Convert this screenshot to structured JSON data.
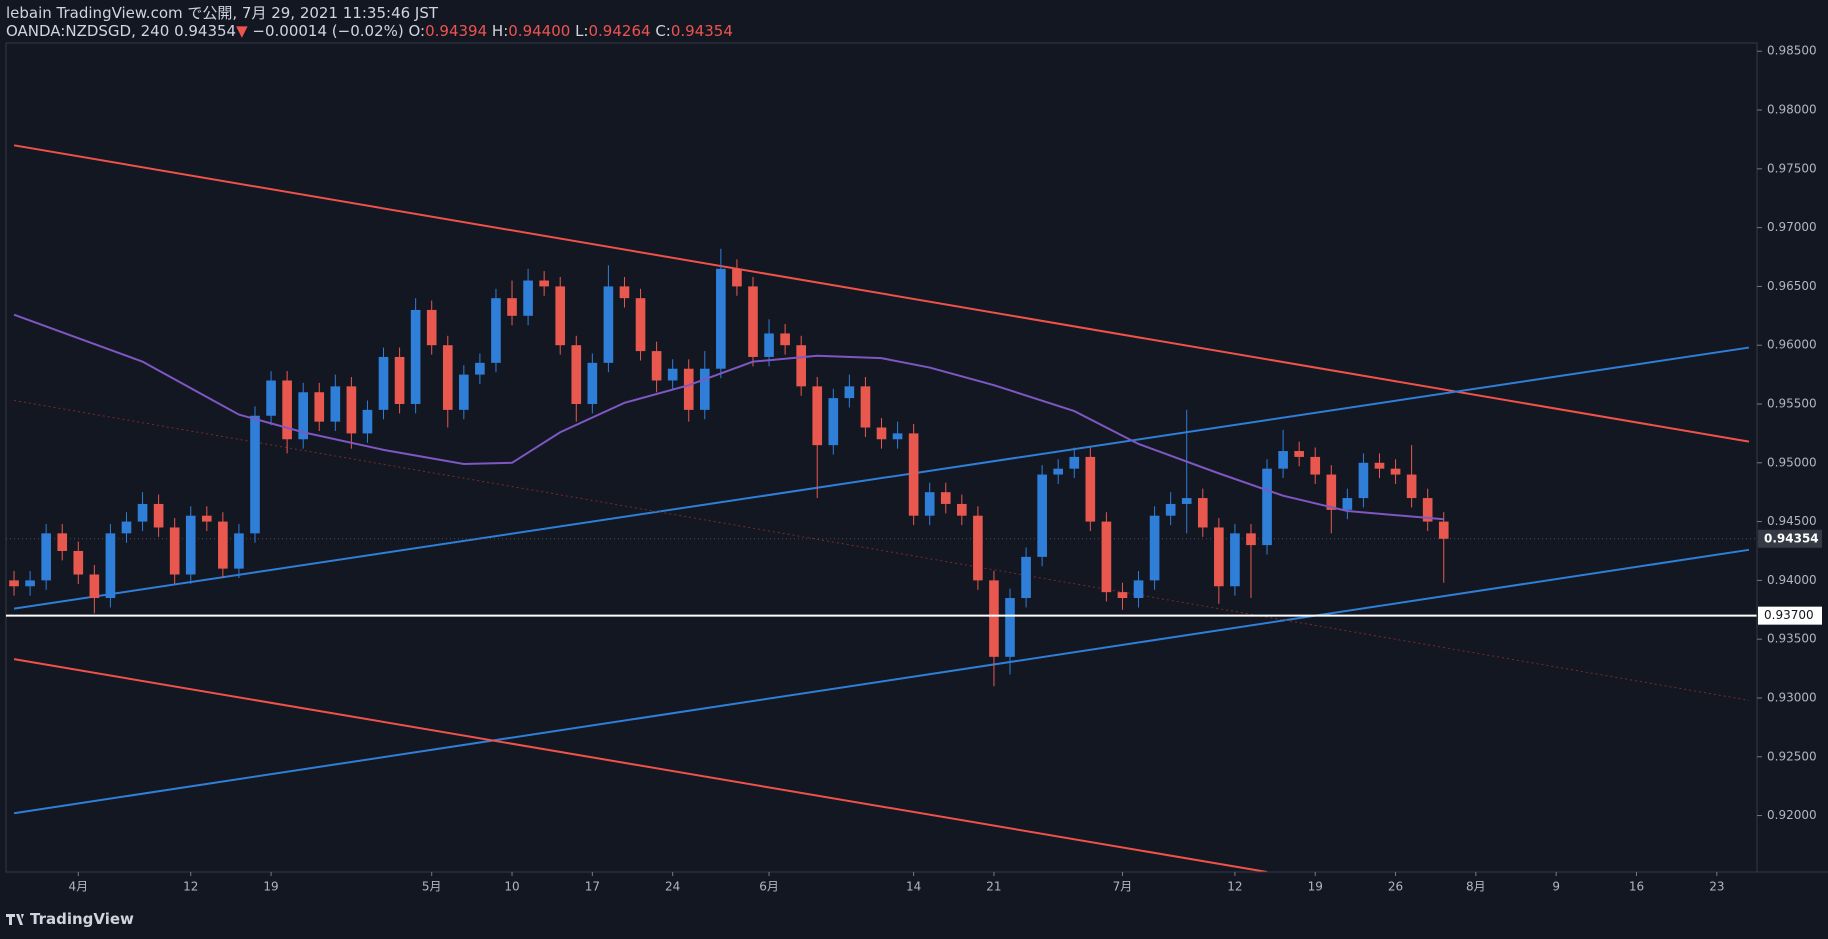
{
  "header": {
    "title": "lebain TradingView.com で公開, 7月 29, 2021 11:35:46 JST",
    "symbol": "OANDA:NZDSGD, 240",
    "last": "0.94354",
    "arrow": "▼",
    "change": "−0.00014 (−0.02%)",
    "ohlc": [
      {
        "label": "O:",
        "value": "0.94394"
      },
      {
        "label": "H:",
        "value": "0.94400"
      },
      {
        "label": "L:",
        "value": "0.94264"
      },
      {
        "label": "C:",
        "value": "0.94354"
      }
    ]
  },
  "footer": {
    "brand": "TradingView"
  },
  "chart_data": {
    "type": "candlestick",
    "categories": [
      "03-26",
      "03-29",
      "03-30",
      "03-31",
      "04-01",
      "04-02",
      "04-05",
      "04-06",
      "04-07",
      "04-08",
      "04-09",
      "04-12",
      "04-13",
      "04-14",
      "04-15",
      "04-16",
      "04-19",
      "04-20",
      "04-21",
      "04-22",
      "04-23",
      "04-26",
      "04-27",
      "04-28",
      "04-29",
      "04-30",
      "05-03",
      "05-04",
      "05-05",
      "05-06",
      "05-07",
      "05-10",
      "05-11",
      "05-12",
      "05-13",
      "05-14",
      "05-17",
      "05-18",
      "05-19",
      "05-20",
      "05-21",
      "05-24",
      "05-25",
      "05-26",
      "05-27",
      "05-28",
      "05-31",
      "06-01",
      "06-02",
      "06-03",
      "06-04",
      "06-07",
      "06-08",
      "06-09",
      "06-10",
      "06-11",
      "06-14",
      "06-15",
      "06-16",
      "06-17",
      "06-18",
      "06-21",
      "06-22",
      "06-23",
      "06-24",
      "06-25",
      "06-28",
      "06-29",
      "06-30",
      "07-01",
      "07-02",
      "07-05",
      "07-06",
      "07-07",
      "07-08",
      "07-09",
      "07-12",
      "07-13",
      "07-14",
      "07-15",
      "07-16",
      "07-19",
      "07-20",
      "07-21",
      "07-22",
      "07-23",
      "07-26",
      "07-27",
      "07-28",
      "07-29",
      "07-30",
      "08-02",
      "08-03",
      "08-04",
      "08-05",
      "08-06",
      "08-09",
      "08-10",
      "08-11",
      "08-12",
      "08-13",
      "08-16",
      "08-17",
      "08-18",
      "08-19",
      "08-20",
      "08-23",
      "08-24",
      "08-25"
    ],
    "open": [
      0.94,
      0.9395,
      0.94,
      0.944,
      0.9425,
      0.9405,
      0.9385,
      0.944,
      0.945,
      0.9465,
      0.9445,
      0.9405,
      0.9455,
      0.945,
      0.941,
      0.944,
      0.954,
      0.957,
      0.952,
      0.956,
      0.9535,
      0.9565,
      0.9525,
      0.9545,
      0.959,
      0.955,
      0.963,
      0.96,
      0.9545,
      0.9575,
      0.9585,
      0.964,
      0.9625,
      0.9655,
      0.965,
      0.96,
      0.955,
      0.9585,
      0.965,
      0.964,
      0.9595,
      0.957,
      0.958,
      0.9545,
      0.958,
      0.9665,
      0.965,
      0.959,
      0.961,
      0.96,
      0.9565,
      0.9515,
      0.9555,
      0.9565,
      0.953,
      0.952,
      0.9525,
      0.9455,
      0.9475,
      0.9465,
      0.9455,
      0.94,
      0.9335,
      0.9385,
      0.942,
      0.949,
      0.9495,
      0.9505,
      0.945,
      0.939,
      0.9385,
      0.94,
      0.9455,
      0.9465,
      0.947,
      0.9445,
      0.9395,
      0.944,
      0.943,
      0.9495,
      0.951,
      0.9505,
      0.949,
      0.946,
      0.947,
      0.95,
      0.9495,
      0.949,
      0.947,
      0.945,
      null,
      null,
      null,
      null,
      null,
      null,
      null,
      null,
      null,
      null,
      null,
      null,
      null,
      null,
      null,
      null,
      null,
      null,
      null
    ],
    "high": [
      0.9408,
      0.9408,
      0.9448,
      0.9448,
      0.9433,
      0.9413,
      0.9448,
      0.9458,
      0.9475,
      0.9473,
      0.9453,
      0.9463,
      0.9463,
      0.9458,
      0.9448,
      0.9548,
      0.9578,
      0.9578,
      0.9568,
      0.9568,
      0.9575,
      0.9573,
      0.9553,
      0.9598,
      0.9598,
      0.964,
      0.9638,
      0.9608,
      0.9583,
      0.9593,
      0.9648,
      0.9655,
      0.9665,
      0.9663,
      0.9658,
      0.9608,
      0.9593,
      0.9668,
      0.9658,
      0.9648,
      0.9603,
      0.9588,
      0.9588,
      0.9595,
      0.9682,
      0.9673,
      0.9658,
      0.9622,
      0.9618,
      0.9608,
      0.9573,
      0.9563,
      0.9575,
      0.9573,
      0.9538,
      0.9535,
      0.9533,
      0.9483,
      0.9483,
      0.9473,
      0.9463,
      0.9408,
      0.9393,
      0.9428,
      0.9498,
      0.9503,
      0.9513,
      0.9513,
      0.9458,
      0.9398,
      0.9408,
      0.9463,
      0.9475,
      0.9545,
      0.9478,
      0.9453,
      0.9448,
      0.9448,
      0.9503,
      0.9528,
      0.9518,
      0.9513,
      0.9498,
      0.9478,
      0.9508,
      0.9508,
      0.9503,
      0.9515,
      0.9478,
      0.9458,
      null,
      null,
      null,
      null,
      null,
      null,
      null,
      null,
      null,
      null,
      null,
      null,
      null,
      null,
      null,
      null,
      null,
      null,
      null
    ],
    "low": [
      0.9387,
      0.9387,
      0.9392,
      0.9417,
      0.9397,
      0.9372,
      0.9377,
      0.9432,
      0.9442,
      0.9437,
      0.9397,
      0.9397,
      0.9442,
      0.9402,
      0.9402,
      0.9432,
      0.9532,
      0.9508,
      0.9512,
      0.9527,
      0.9527,
      0.9512,
      0.9517,
      0.9537,
      0.9542,
      0.9542,
      0.9592,
      0.953,
      0.9537,
      0.9567,
      0.9577,
      0.9617,
      0.9617,
      0.9642,
      0.9592,
      0.9535,
      0.9542,
      0.9577,
      0.9632,
      0.9587,
      0.956,
      0.9562,
      0.9535,
      0.9537,
      0.9572,
      0.9642,
      0.9582,
      0.9582,
      0.9592,
      0.9557,
      0.947,
      0.9507,
      0.9547,
      0.9522,
      0.9512,
      0.9512,
      0.9447,
      0.9447,
      0.9457,
      0.9447,
      0.9392,
      0.931,
      0.932,
      0.9377,
      0.9412,
      0.9482,
      0.9487,
      0.9442,
      0.9382,
      0.9375,
      0.9377,
      0.9392,
      0.9447,
      0.944,
      0.9437,
      0.938,
      0.9387,
      0.9385,
      0.9422,
      0.9487,
      0.9497,
      0.9482,
      0.944,
      0.9452,
      0.9462,
      0.9487,
      0.9482,
      0.9462,
      0.9442,
      0.9398,
      null,
      null,
      null,
      null,
      null,
      null,
      null,
      null,
      null,
      null,
      null,
      null,
      null,
      null,
      null,
      null,
      null,
      null,
      null
    ],
    "close": [
      0.9395,
      0.94,
      0.944,
      0.9425,
      0.9405,
      0.9385,
      0.944,
      0.945,
      0.9465,
      0.9445,
      0.9405,
      0.9455,
      0.945,
      0.941,
      0.944,
      0.954,
      0.957,
      0.952,
      0.956,
      0.9535,
      0.9565,
      0.9525,
      0.9545,
      0.959,
      0.955,
      0.963,
      0.96,
      0.9545,
      0.9575,
      0.9585,
      0.964,
      0.9625,
      0.9655,
      0.965,
      0.96,
      0.955,
      0.9585,
      0.965,
      0.964,
      0.9595,
      0.957,
      0.958,
      0.9545,
      0.958,
      0.9665,
      0.965,
      0.959,
      0.961,
      0.96,
      0.9565,
      0.9515,
      0.9555,
      0.9565,
      0.953,
      0.952,
      0.9525,
      0.9455,
      0.9475,
      0.9465,
      0.9455,
      0.94,
      0.9335,
      0.9385,
      0.942,
      0.949,
      0.9495,
      0.9505,
      0.945,
      0.939,
      0.9385,
      0.94,
      0.9455,
      0.9465,
      0.947,
      0.9445,
      0.9395,
      0.944,
      0.943,
      0.9495,
      0.951,
      0.9505,
      0.949,
      0.946,
      0.947,
      0.95,
      0.9495,
      0.949,
      0.947,
      0.945,
      0.94354,
      null,
      null,
      null,
      null,
      null,
      null,
      null,
      null,
      null,
      null,
      null,
      null,
      null,
      null,
      null,
      null,
      null,
      null,
      null
    ],
    "up_color": "#2f7ed8",
    "down_color": "#e8584f",
    "ylim": [
      0.9152,
      0.9857
    ],
    "yticks": [
      {
        "value": 0.92,
        "label": "0.92000"
      },
      {
        "value": 0.925,
        "label": "0.92500"
      },
      {
        "value": 0.93,
        "label": "0.93000"
      },
      {
        "value": 0.935,
        "label": "0.93500"
      },
      {
        "value": 0.94,
        "label": "0.94000"
      },
      {
        "value": 0.945,
        "label": "0.94500"
      },
      {
        "value": 0.95,
        "label": "0.95000"
      },
      {
        "value": 0.955,
        "label": "0.95500"
      },
      {
        "value": 0.96,
        "label": "0.96000"
      },
      {
        "value": 0.965,
        "label": "0.96500"
      },
      {
        "value": 0.97,
        "label": "0.97000"
      },
      {
        "value": 0.975,
        "label": "0.97500"
      },
      {
        "value": 0.98,
        "label": "0.98000"
      },
      {
        "value": 0.985,
        "label": "0.98500"
      }
    ],
    "xticks": [
      {
        "value": "04-01",
        "label": "4月"
      },
      {
        "value": "04-12",
        "label": "12"
      },
      {
        "value": "04-19",
        "label": "19"
      },
      {
        "value": "05-03",
        "label": "5月"
      },
      {
        "value": "05-10",
        "label": "10"
      },
      {
        "value": "05-17",
        "label": "17"
      },
      {
        "value": "05-24",
        "label": "24"
      },
      {
        "value": "06-01",
        "label": "6月"
      },
      {
        "value": "06-14",
        "label": "14"
      },
      {
        "value": "06-21",
        "label": "21"
      },
      {
        "value": "07-01",
        "label": "7月"
      },
      {
        "value": "07-12",
        "label": "12"
      },
      {
        "value": "07-19",
        "label": "19"
      },
      {
        "value": "07-26",
        "label": "26"
      },
      {
        "value": "08-02",
        "label": "8月"
      },
      {
        "value": "08-09",
        "label": "9"
      },
      {
        "value": "08-16",
        "label": "16"
      },
      {
        "value": "08-23",
        "label": "23"
      }
    ],
    "grid": false,
    "ma": {
      "color": "#7e57c2",
      "x": [
        "03-26",
        "04-01",
        "04-07",
        "04-13",
        "04-15",
        "04-21",
        "04-28",
        "05-05",
        "05-10",
        "05-13",
        "05-19",
        "05-25",
        "05-31",
        "06-04",
        "06-10",
        "06-15",
        "06-21",
        "06-28",
        "07-02",
        "07-09",
        "07-15",
        "07-21",
        "07-29"
      ],
      "values": [
        0.9626,
        0.9606,
        0.9586,
        0.9556,
        0.9541,
        0.9526,
        0.9511,
        0.9499,
        0.95,
        0.9526,
        0.9551,
        0.9566,
        0.9586,
        0.9591,
        0.9589,
        0.9581,
        0.9566,
        0.9544,
        0.9516,
        0.9491,
        0.9472,
        0.9459,
        0.9452
      ]
    },
    "lines": [
      {
        "color": "#f0524a",
        "x": [
          "03-26",
          "08-25"
        ],
        "values": [
          0.977,
          0.9518
        ]
      },
      {
        "color": "#2f7ed8",
        "x": [
          "03-26",
          "08-25"
        ],
        "values": [
          0.9376,
          0.9598
        ]
      },
      {
        "color": "#2f7ed8",
        "x": [
          "03-26",
          "08-25"
        ],
        "values": [
          0.9202,
          0.9426
        ]
      },
      {
        "color": "#f0524a",
        "x": [
          "03-26",
          "07-14"
        ],
        "values": [
          0.9333,
          0.9152
        ]
      },
      {
        "color": "#7a2a2a",
        "x": [
          "03-26",
          "08-25"
        ],
        "values": [
          0.9553,
          0.9298
        ],
        "dashed": true
      }
    ],
    "hline": {
      "value": 0.937,
      "label": "0.93700",
      "color": "#ffffff"
    },
    "last_price": {
      "value": 0.94354,
      "label": "0.94354"
    }
  }
}
